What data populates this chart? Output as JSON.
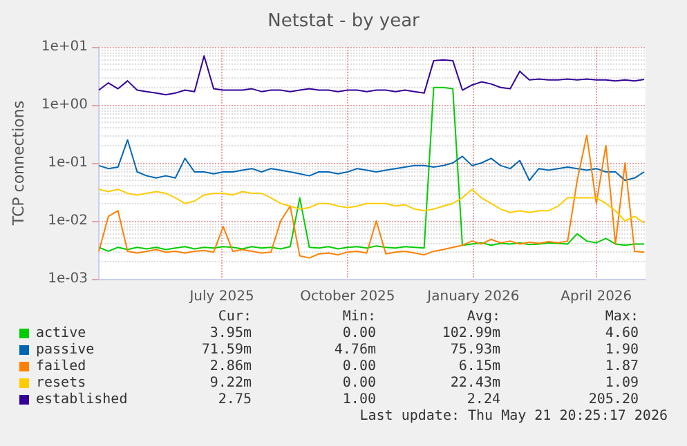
{
  "chart_data": {
    "type": "line",
    "title": "Netstat - by year",
    "ylabel": "TCP connections",
    "x": [
      "2025-04-16",
      "2025-04-23",
      "2025-04-30",
      "2025-05-07",
      "2025-05-14",
      "2025-05-21",
      "2025-05-28",
      "2025-06-04",
      "2025-06-11",
      "2025-06-18",
      "2025-06-25",
      "2025-07-02",
      "2025-07-09",
      "2025-07-16",
      "2025-07-23",
      "2025-07-30",
      "2025-08-06",
      "2025-08-13",
      "2025-08-20",
      "2025-08-27",
      "2025-09-03",
      "2025-09-10",
      "2025-09-17",
      "2025-09-24",
      "2025-10-01",
      "2025-10-08",
      "2025-10-15",
      "2025-10-22",
      "2025-10-29",
      "2025-11-05",
      "2025-11-12",
      "2025-11-19",
      "2025-11-26",
      "2025-12-03",
      "2025-12-10",
      "2025-12-17",
      "2025-12-24",
      "2025-12-31",
      "2026-01-07",
      "2026-01-14",
      "2026-01-21",
      "2026-01-28",
      "2026-02-04",
      "2026-02-11",
      "2026-02-18",
      "2026-02-25",
      "2026-03-04",
      "2026-03-11",
      "2026-03-18",
      "2026-03-25",
      "2026-04-01",
      "2026-04-08",
      "2026-04-15",
      "2026-04-22",
      "2026-04-29",
      "2026-05-06",
      "2026-05-13",
      "2026-05-20"
    ],
    "series": [
      {
        "name": "active",
        "color": "#00cc00",
        "values": [
          0.0035,
          0.003,
          0.0035,
          0.0032,
          0.0035,
          0.0033,
          0.0035,
          0.0032,
          0.0034,
          0.0036,
          0.0033,
          0.0035,
          0.0034,
          0.0036,
          0.0035,
          0.0033,
          0.0036,
          0.0034,
          0.0035,
          0.0033,
          0.0036,
          0.025,
          0.0035,
          0.0034,
          0.0036,
          0.0033,
          0.0035,
          0.0036,
          0.0034,
          0.0037,
          0.0035,
          0.0034,
          0.0036,
          0.0035,
          0.0034,
          2.0,
          2.0,
          1.9,
          0.0038,
          0.004,
          0.0042,
          0.0038,
          0.0041,
          0.004,
          0.0042,
          0.0039,
          0.004,
          0.0042,
          0.0041,
          0.004,
          0.006,
          0.0045,
          0.0042,
          0.005,
          0.004,
          0.0038,
          0.004,
          0.004
        ]
      },
      {
        "name": "passive",
        "color": "#0066b3",
        "values": [
          0.09,
          0.08,
          0.085,
          0.25,
          0.07,
          0.06,
          0.055,
          0.06,
          0.055,
          0.12,
          0.07,
          0.07,
          0.065,
          0.07,
          0.07,
          0.075,
          0.08,
          0.07,
          0.08,
          0.075,
          0.07,
          0.065,
          0.06,
          0.07,
          0.07,
          0.065,
          0.07,
          0.08,
          0.075,
          0.07,
          0.075,
          0.08,
          0.085,
          0.09,
          0.09,
          0.085,
          0.09,
          0.1,
          0.13,
          0.09,
          0.1,
          0.12,
          0.09,
          0.08,
          0.11,
          0.05,
          0.08,
          0.075,
          0.08,
          0.085,
          0.08,
          0.075,
          0.08,
          0.07,
          0.07,
          0.05,
          0.055,
          0.07
        ]
      },
      {
        "name": "failed",
        "color": "#ff8000",
        "values": [
          0.003,
          0.012,
          0.015,
          0.003,
          0.0028,
          0.003,
          0.0032,
          0.0029,
          0.003,
          0.0028,
          0.003,
          0.0031,
          0.0029,
          0.008,
          0.003,
          0.0032,
          0.003,
          0.0028,
          0.0029,
          0.01,
          0.018,
          0.0025,
          0.0023,
          0.0027,
          0.0028,
          0.0026,
          0.0029,
          0.003,
          0.0028,
          0.01,
          0.0027,
          0.0029,
          0.003,
          0.0028,
          0.0026,
          0.003,
          0.0032,
          0.0035,
          0.0038,
          0.0045,
          0.004,
          0.0048,
          0.0042,
          0.0045,
          0.004,
          0.0043,
          0.0041,
          0.0044,
          0.0042,
          0.0045,
          0.05,
          0.3,
          0.02,
          0.2,
          0.004,
          0.1,
          0.003,
          0.0029
        ]
      },
      {
        "name": "resets",
        "color": "#ffcc00",
        "values": [
          0.035,
          0.032,
          0.035,
          0.03,
          0.028,
          0.03,
          0.032,
          0.03,
          0.025,
          0.02,
          0.022,
          0.028,
          0.03,
          0.03,
          0.028,
          0.032,
          0.03,
          0.03,
          0.025,
          0.02,
          0.018,
          0.016,
          0.017,
          0.02,
          0.02,
          0.018,
          0.017,
          0.018,
          0.02,
          0.02,
          0.02,
          0.018,
          0.019,
          0.016,
          0.015,
          0.016,
          0.018,
          0.02,
          0.025,
          0.035,
          0.025,
          0.02,
          0.016,
          0.014,
          0.015,
          0.014,
          0.015,
          0.015,
          0.018,
          0.025,
          0.025,
          0.025,
          0.025,
          0.02,
          0.015,
          0.01,
          0.012,
          0.0092
        ]
      },
      {
        "name": "established",
        "color": "#330099",
        "values": [
          1.8,
          2.4,
          1.9,
          2.6,
          1.8,
          1.7,
          1.6,
          1.5,
          1.6,
          1.8,
          1.7,
          7.0,
          1.9,
          1.8,
          1.8,
          1.8,
          1.9,
          1.7,
          1.8,
          1.8,
          1.7,
          1.8,
          1.9,
          1.8,
          1.8,
          1.7,
          1.8,
          1.8,
          1.7,
          1.8,
          1.8,
          1.7,
          1.8,
          1.7,
          1.6,
          5.8,
          6.0,
          5.8,
          1.8,
          2.2,
          2.5,
          2.3,
          2.0,
          1.9,
          3.8,
          2.7,
          2.8,
          2.7,
          2.7,
          2.8,
          2.7,
          2.8,
          2.7,
          2.7,
          2.6,
          2.7,
          2.6,
          2.75
        ]
      }
    ],
    "xlim": [
      "2025-04-16",
      "2026-05-21"
    ],
    "xticks": [
      {
        "value": "2025-07-15",
        "label": "July 2025"
      },
      {
        "value": "2025-10-15",
        "label": "October 2025"
      },
      {
        "value": "2026-01-15",
        "label": "January 2026"
      },
      {
        "value": "2026-04-15",
        "label": "April 2026"
      }
    ],
    "ylim": [
      0.001,
      10
    ],
    "log": true,
    "yticks": [
      {
        "value": 0.001,
        "label": "1e-03"
      },
      {
        "value": 0.01,
        "label": "1e-02"
      },
      {
        "value": 0.1,
        "label": "1e-01"
      },
      {
        "value": 1,
        "label": "1e+00"
      },
      {
        "value": 10,
        "label": "1e+01"
      }
    ],
    "grid": true,
    "legend": "bottom",
    "marker": "none",
    "line_style": "solid",
    "annotations": [
      "Cur:",
      "Min:",
      "Avg:",
      "Max:",
      "3.95m",
      "0.00",
      "102.99m",
      "4.60",
      "71.59m",
      "4.76m",
      "75.93m",
      "1.90",
      "2.86m",
      "0.00",
      "6.15m",
      "1.87",
      "9.22m",
      "0.00",
      "22.43m",
      "1.09",
      "2.75",
      "1.00",
      "2.24",
      "205.20",
      "Last update: Thu May 21 20:25:17 2026"
    ]
  }
}
